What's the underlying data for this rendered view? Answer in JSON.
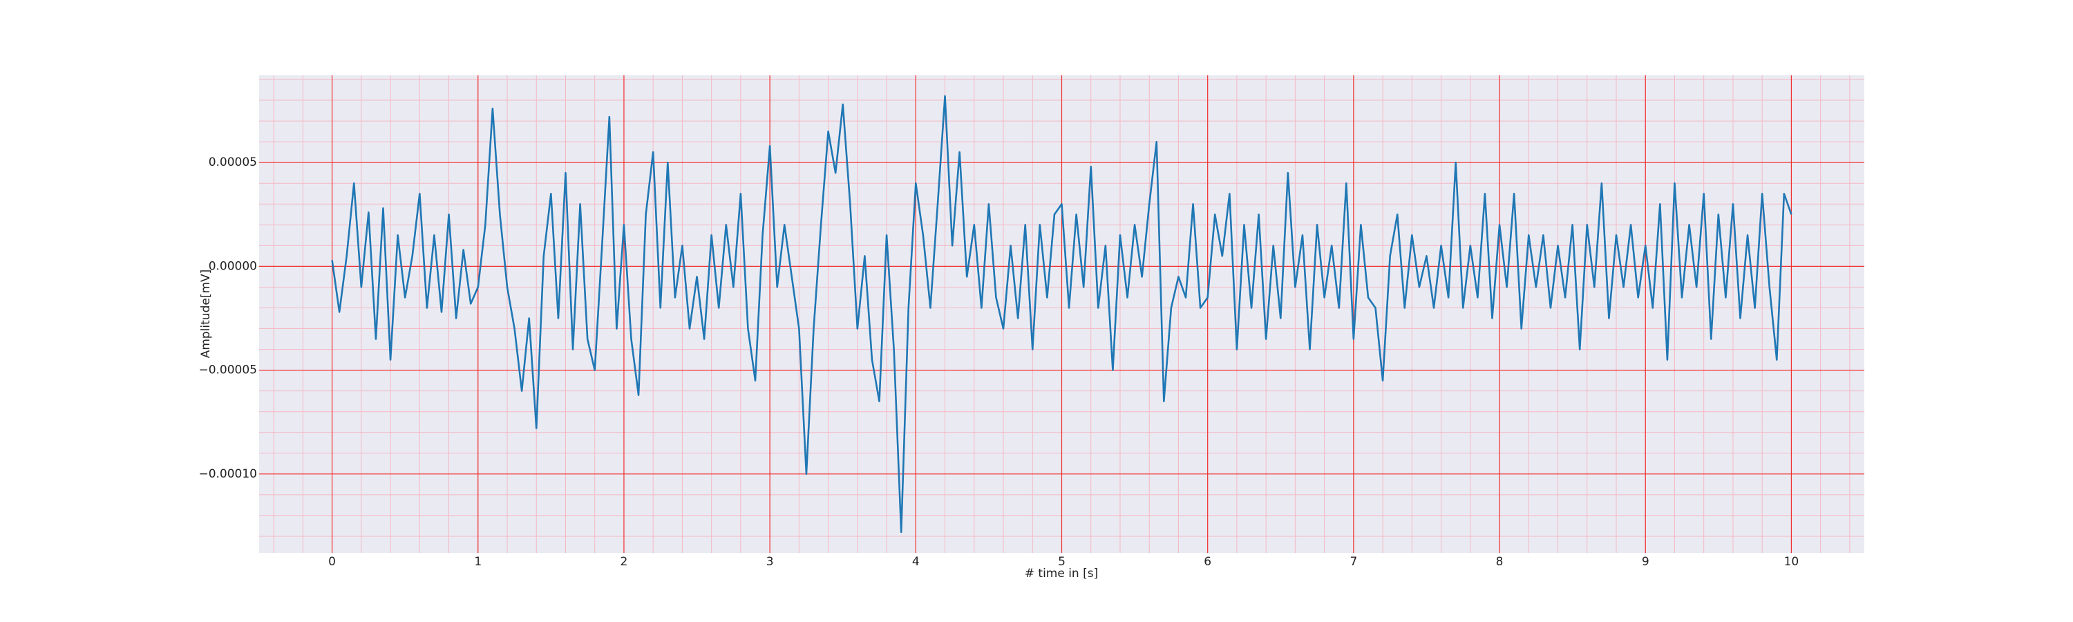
{
  "chart_data": {
    "type": "line",
    "xlabel": "# time in [s]",
    "ylabel": "Amplitude[mV]",
    "x": [
      0,
      0.05,
      0.1,
      0.15,
      0.2,
      0.25,
      0.3,
      0.35,
      0.4,
      0.45,
      0.5,
      0.55,
      0.6,
      0.65,
      0.7,
      0.75,
      0.8,
      0.85,
      0.9,
      0.95,
      1,
      1.05,
      1.1,
      1.15,
      1.2,
      1.25,
      1.3,
      1.35,
      1.4,
      1.45,
      1.5,
      1.55,
      1.6,
      1.65,
      1.7,
      1.75,
      1.8,
      1.85,
      1.9,
      1.95,
      2,
      2.05,
      2.1,
      2.15,
      2.2,
      2.25,
      2.3,
      2.35,
      2.4,
      2.45,
      2.5,
      2.55,
      2.6,
      2.65,
      2.7,
      2.75,
      2.8,
      2.85,
      2.9,
      2.95,
      3,
      3.05,
      3.1,
      3.15,
      3.2,
      3.25,
      3.3,
      3.35,
      3.4,
      3.45,
      3.5,
      3.55,
      3.6,
      3.65,
      3.7,
      3.75,
      3.8,
      3.85,
      3.9,
      3.95,
      4,
      4.05,
      4.1,
      4.15,
      4.2,
      4.25,
      4.3,
      4.35,
      4.4,
      4.45,
      4.5,
      4.55,
      4.6,
      4.65,
      4.7,
      4.75,
      4.8,
      4.85,
      4.9,
      4.95,
      5,
      5.05,
      5.1,
      5.15,
      5.2,
      5.25,
      5.3,
      5.35,
      5.4,
      5.45,
      5.5,
      5.55,
      5.6,
      5.65,
      5.7,
      5.75,
      5.8,
      5.85,
      5.9,
      5.95,
      6,
      6.05,
      6.1,
      6.15,
      6.2,
      6.25,
      6.3,
      6.35,
      6.4,
      6.45,
      6.5,
      6.55,
      6.6,
      6.65,
      6.7,
      6.75,
      6.8,
      6.85,
      6.9,
      6.95,
      7,
      7.05,
      7.1,
      7.15,
      7.2,
      7.25,
      7.3,
      7.35,
      7.4,
      7.45,
      7.5,
      7.55,
      7.6,
      7.65,
      7.7,
      7.75,
      7.8,
      7.85,
      7.9,
      7.95,
      8,
      8.05,
      8.1,
      8.15,
      8.2,
      8.25,
      8.3,
      8.35,
      8.4,
      8.45,
      8.5,
      8.55,
      8.6,
      8.65,
      8.7,
      8.75,
      8.8,
      8.85,
      8.9,
      8.95,
      9,
      9.05,
      9.1,
      9.15,
      9.2,
      9.25,
      9.3,
      9.35,
      9.4,
      9.45,
      9.5,
      9.55,
      9.6,
      9.65,
      9.7,
      9.75,
      9.8,
      9.85,
      9.9,
      9.95,
      10
    ],
    "series": [
      {
        "color": "#1f77b4",
        "values": [
          3e-06,
          -2.2e-05,
          5e-06,
          4e-05,
          -1e-05,
          2.6e-05,
          -3.5e-05,
          2.8e-05,
          -4.5e-05,
          1.5e-05,
          -1.5e-05,
          5e-06,
          3.5e-05,
          -2e-05,
          1.5e-05,
          -2.2e-05,
          2.5e-05,
          -2.5e-05,
          8e-06,
          -1.8e-05,
          -1e-05,
          2e-05,
          7.6e-05,
          2.5e-05,
          -1e-05,
          -3e-05,
          -6e-05,
          -2.5e-05,
          -7.8e-05,
          5e-06,
          3.5e-05,
          -2.5e-05,
          4.5e-05,
          -4e-05,
          3e-05,
          -3.5e-05,
          -5e-05,
          1e-05,
          7.2e-05,
          -3e-05,
          2e-05,
          -3.5e-05,
          -6.2e-05,
          2.5e-05,
          5.5e-05,
          -2e-05,
          5e-05,
          -1.5e-05,
          1e-05,
          -3e-05,
          -5e-06,
          -3.5e-05,
          1.5e-05,
          -2e-05,
          2e-05,
          -1e-05,
          3.5e-05,
          -3e-05,
          -5.5e-05,
          1.5e-05,
          5.8e-05,
          -1e-05,
          2e-05,
          -5e-06,
          -3e-05,
          -0.0001,
          -3e-05,
          2e-05,
          6.5e-05,
          4.5e-05,
          7.8e-05,
          3e-05,
          -3e-05,
          5e-06,
          -4.5e-05,
          -6.5e-05,
          1.5e-05,
          -4e-05,
          -0.000128,
          -2e-05,
          4e-05,
          1.5e-05,
          -2e-05,
          3e-05,
          8.2e-05,
          1e-05,
          5.5e-05,
          -5e-06,
          2e-05,
          -2e-05,
          3e-05,
          -1.5e-05,
          -3e-05,
          1e-05,
          -2.5e-05,
          2e-05,
          -4e-05,
          2e-05,
          -1.5e-05,
          2.5e-05,
          3e-05,
          -2e-05,
          2.5e-05,
          -1e-05,
          4.8e-05,
          -2e-05,
          1e-05,
          -5e-05,
          1.5e-05,
          -1.5e-05,
          2e-05,
          -5e-06,
          3e-05,
          6e-05,
          -6.5e-05,
          -2e-05,
          -5e-06,
          -1.5e-05,
          3e-05,
          -2e-05,
          -1.5e-05,
          2.5e-05,
          5e-06,
          3.5e-05,
          -4e-05,
          2e-05,
          -2e-05,
          2.5e-05,
          -3.5e-05,
          1e-05,
          -2.5e-05,
          4.5e-05,
          -1e-05,
          1.5e-05,
          -4e-05,
          2e-05,
          -1.5e-05,
          1e-05,
          -2e-05,
          4e-05,
          -3.5e-05,
          2e-05,
          -1.5e-05,
          -2e-05,
          -5.5e-05,
          5e-06,
          2.5e-05,
          -2e-05,
          1.5e-05,
          -1e-05,
          5e-06,
          -2e-05,
          1e-05,
          -1.5e-05,
          5e-05,
          -2e-05,
          1e-05,
          -1.5e-05,
          3.5e-05,
          -2.5e-05,
          2e-05,
          -1e-05,
          3.5e-05,
          -3e-05,
          1.5e-05,
          -1e-05,
          1.5e-05,
          -2e-05,
          1e-05,
          -1.5e-05,
          2e-05,
          -4e-05,
          2e-05,
          -1e-05,
          4e-05,
          -2.5e-05,
          1.5e-05,
          -1e-05,
          2e-05,
          -1.5e-05,
          1e-05,
          -2e-05,
          3e-05,
          -4.5e-05,
          4e-05,
          -1.5e-05,
          2e-05,
          -1e-05,
          3.5e-05,
          -3.5e-05,
          2.5e-05,
          -1.5e-05,
          3e-05,
          -2.5e-05,
          1.5e-05,
          -2e-05,
          3.5e-05,
          -1e-05,
          -4.5e-05,
          3.5e-05,
          2.5e-05
        ]
      }
    ],
    "xlim": [
      -0.5,
      10.5
    ],
    "ylim": [
      -0.000138,
      9.2e-05
    ],
    "xticks": [
      0,
      1,
      2,
      3,
      4,
      5,
      6,
      7,
      8,
      9,
      10
    ],
    "yticks": [
      {
        "value": -0.0001,
        "label": "−0.00010"
      },
      {
        "value": -5e-05,
        "label": "−0.00005"
      },
      {
        "value": 0,
        "label": "0.00000"
      },
      {
        "value": 5e-05,
        "label": "0.00005"
      }
    ],
    "grid": true,
    "minor_grid": true
  }
}
